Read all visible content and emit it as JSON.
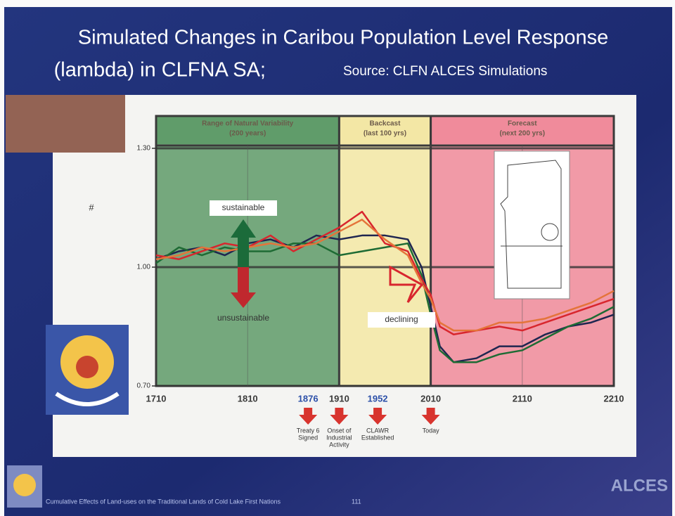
{
  "chart_data": {
    "type": "line",
    "title": "Simulated Changes in Caribou Population Level Response",
    "title_line2": "(lambda) in CLFNA SA;",
    "subtitle": "Source: CLFN ALCES Simulations",
    "y_label": "#",
    "xlim": [
      1710,
      2210
    ],
    "xticks": [
      1710,
      1810,
      1910,
      2010,
      2110,
      2210
    ],
    "ylim": [
      0.7,
      1.3
    ],
    "yticks": [
      {
        "value": 0.7,
        "label": "0.70"
      },
      {
        "value": 1.0,
        "label": "1.00"
      },
      {
        "value": 1.3,
        "label": "1.30"
      }
    ],
    "grid": true,
    "regions": [
      {
        "from": 1710,
        "to": 1910,
        "label": "Range of Natural Variability",
        "sublabel": "(200 years)",
        "color": "#5e9a68"
      },
      {
        "from": 1910,
        "to": 2010,
        "label": "Backcast",
        "sublabel": "(last 100 yrs)",
        "color": "#f3e7a4"
      },
      {
        "from": 2010,
        "to": 2210,
        "label": "Forecast",
        "sublabel": "(next 200 yrs)",
        "color": "#f08a9a"
      }
    ],
    "x": [
      1710,
      1735,
      1760,
      1785,
      1810,
      1835,
      1860,
      1885,
      1910,
      1935,
      1960,
      1985,
      2000,
      2010,
      2020,
      2035,
      2060,
      2085,
      2110,
      2135,
      2160,
      2185,
      2210
    ],
    "series": [
      {
        "color": "#1f2650",
        "values": [
          1.02,
          1.04,
          1.05,
          1.03,
          1.06,
          1.07,
          1.05,
          1.08,
          1.07,
          1.08,
          1.08,
          1.07,
          1.0,
          0.9,
          0.8,
          0.76,
          0.77,
          0.8,
          0.8,
          0.83,
          0.85,
          0.86,
          0.88
        ]
      },
      {
        "color": "#1e6b34",
        "values": [
          1.01,
          1.05,
          1.03,
          1.05,
          1.04,
          1.04,
          1.06,
          1.06,
          1.03,
          1.04,
          1.05,
          1.06,
          0.98,
          0.88,
          0.79,
          0.76,
          0.76,
          0.78,
          0.79,
          0.82,
          0.85,
          0.87,
          0.9
        ]
      },
      {
        "color": "#d8262e",
        "values": [
          1.03,
          1.02,
          1.04,
          1.06,
          1.05,
          1.08,
          1.04,
          1.07,
          1.1,
          1.14,
          1.06,
          1.04,
          0.97,
          0.93,
          0.85,
          0.83,
          0.84,
          0.85,
          0.84,
          0.86,
          0.88,
          0.9,
          0.92
        ]
      },
      {
        "color": "#e4743a",
        "values": [
          1.02,
          1.03,
          1.05,
          1.04,
          1.05,
          1.06,
          1.05,
          1.06,
          1.09,
          1.12,
          1.07,
          1.03,
          0.96,
          0.92,
          0.86,
          0.84,
          0.84,
          0.86,
          0.86,
          0.87,
          0.89,
          0.91,
          0.94
        ]
      }
    ],
    "annotations": [
      "sustainable",
      "unsustainable",
      "declining"
    ],
    "events": [
      {
        "x": 1876,
        "show_year": true,
        "label": [
          "Treaty 6",
          "Signed"
        ]
      },
      {
        "x": 1910,
        "show_year": false,
        "label": [
          "Onset of",
          "Industrial",
          "Activity"
        ]
      },
      {
        "x": 1952,
        "show_year": true,
        "label": [
          "CLAWR",
          "Established"
        ]
      },
      {
        "x": 2010,
        "show_year": false,
        "label": [
          "Today"
        ]
      }
    ],
    "footer": "Cumulative Effects of Land-uses on the Traditional Lands of Cold Lake First Nations",
    "page_number": "111",
    "brand": "ALCES"
  }
}
